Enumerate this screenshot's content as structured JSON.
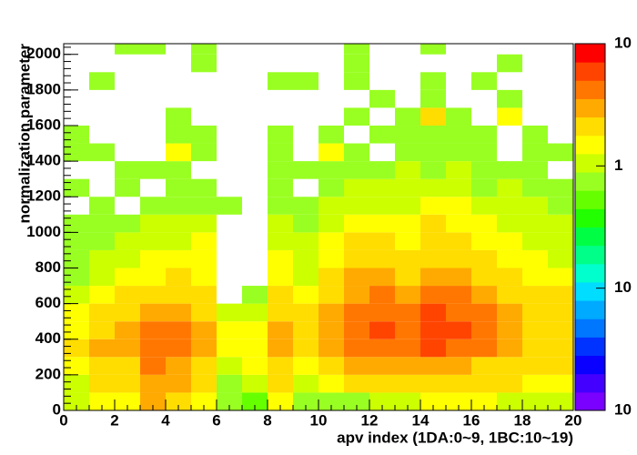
{
  "chart_data": {
    "type": "heatmap",
    "xlabel": "apv index (1DA:0~9, 1BC:10~19)",
    "ylabel": "normalization parameter",
    "xbins": [
      0,
      1,
      2,
      3,
      4,
      5,
      6,
      7,
      8,
      9,
      10,
      11,
      12,
      13,
      14,
      15,
      16,
      17,
      18,
      19,
      20
    ],
    "ybins": [
      0,
      100,
      200,
      300,
      400,
      500,
      600,
      700,
      800,
      900,
      1000,
      1100,
      1200,
      1300,
      1400,
      1500,
      1600,
      1700,
      1800,
      1900,
      2000,
      2060
    ],
    "xlim": [
      0,
      20
    ],
    "ylim": [
      0,
      2060
    ],
    "xticks": [
      0,
      2,
      4,
      6,
      8,
      10,
      12,
      14,
      16,
      18,
      20
    ],
    "yticks": [
      0,
      200,
      400,
      600,
      800,
      1000,
      1200,
      1400,
      1600,
      1800,
      2000
    ],
    "zlim": [
      0.01,
      10
    ],
    "zlog": true,
    "zticks": [
      {
        "value": 0.01,
        "label": "10"
      },
      {
        "value": 0.1,
        "label": "10"
      },
      1,
      10
    ],
    "palette": [
      "#7a00ff",
      "#4400ff",
      "#0a00ff",
      "#0033ff",
      "#0077ff",
      "#00aaff",
      "#00ddff",
      "#00ffcc",
      "#00ff88",
      "#00ff44",
      "#22ff00",
      "#66ff00",
      "#99ff22",
      "#ccff00",
      "#ffff00",
      "#ffdd00",
      "#ffaa00",
      "#ff7700",
      "#ff4400",
      "#ff0000"
    ],
    "z": [
      [
        1,
        1.5,
        1.5,
        3,
        2,
        1.5,
        0.8,
        0.5,
        1.5,
        0.8,
        0.8,
        0.8,
        1,
        1,
        1.5,
        1.5,
        1.5,
        1,
        1,
        1
      ],
      [
        1,
        2,
        2,
        3,
        3,
        2,
        0.8,
        1,
        2,
        1,
        1.5,
        2,
        2,
        2.5,
        2,
        2,
        2,
        2,
        1.5,
        1.5
      ],
      [
        1.5,
        2.5,
        2.5,
        4,
        3,
        2.5,
        1,
        1.5,
        2.5,
        1.5,
        2,
        3,
        3,
        3,
        3,
        3,
        2.5,
        2.5,
        2,
        2
      ],
      [
        2,
        3,
        3,
        5,
        4,
        3,
        1.5,
        1.5,
        3,
        2,
        3,
        4,
        5,
        5,
        6,
        5,
        4,
        3,
        2.5,
        2
      ],
      [
        1.5,
        2.5,
        3,
        4,
        4,
        3,
        1.5,
        1.5,
        3,
        2,
        3,
        5,
        6,
        5,
        7,
        6,
        4,
        3,
        2.5,
        2
      ],
      [
        1.5,
        2,
        2.5,
        3,
        3,
        2.5,
        1,
        1,
        2.5,
        2,
        3,
        4,
        5,
        4,
        6,
        5,
        4,
        3,
        2.5,
        2
      ],
      [
        1,
        1.5,
        2,
        2,
        2.5,
        2,
        null,
        0.8,
        2,
        1.5,
        2.5,
        3,
        4,
        3,
        4,
        4,
        3,
        2.5,
        2,
        2
      ],
      [
        0.8,
        1,
        1.5,
        1.5,
        2,
        1.5,
        null,
        null,
        1.5,
        1,
        2,
        3,
        3,
        2.5,
        3,
        3,
        2.5,
        2,
        1.5,
        1.5
      ],
      [
        0.8,
        1,
        1,
        1.5,
        1.5,
        1.5,
        null,
        null,
        1.5,
        1,
        1.5,
        2,
        2.5,
        2,
        2.5,
        2.5,
        2,
        1.5,
        1.5,
        1
      ],
      [
        0.8,
        0.8,
        1,
        1,
        1,
        1.5,
        null,
        null,
        1,
        1,
        1.5,
        2,
        2,
        1.5,
        2,
        2,
        1.5,
        1.5,
        1,
        1
      ],
      [
        0.8,
        0.8,
        0.8,
        1,
        1,
        1,
        null,
        null,
        1,
        0.8,
        1,
        1.5,
        1.5,
        1.5,
        2,
        1.5,
        1.5,
        1,
        1,
        1
      ],
      [
        null,
        0.8,
        null,
        0.8,
        0.8,
        0.8,
        0.8,
        null,
        0.8,
        0.8,
        1,
        1,
        1,
        1,
        1.5,
        1.5,
        1,
        1,
        1,
        0.8
      ],
      [
        0.8,
        null,
        0.8,
        null,
        0.8,
        0.8,
        null,
        null,
        0.8,
        null,
        0.8,
        1,
        1,
        1,
        1,
        1,
        0.8,
        1,
        0.8,
        0.8
      ],
      [
        null,
        null,
        0.8,
        0.8,
        0.8,
        null,
        null,
        null,
        0.8,
        0.8,
        0.8,
        0.8,
        0.8,
        1,
        0.8,
        1,
        0.8,
        0.8,
        0.8,
        null
      ],
      [
        0.8,
        0.8,
        null,
        null,
        1.5,
        0.8,
        null,
        null,
        0.8,
        null,
        1.5,
        0.8,
        null,
        0.8,
        0.8,
        0.8,
        0.8,
        null,
        0.8,
        0.8
      ],
      [
        0.8,
        null,
        null,
        null,
        0.8,
        0.8,
        null,
        null,
        0.8,
        null,
        0.8,
        null,
        0.8,
        0.8,
        0.8,
        0.8,
        0.8,
        null,
        0.8,
        null
      ],
      [
        null,
        null,
        null,
        null,
        0.8,
        null,
        null,
        null,
        null,
        null,
        null,
        0.8,
        null,
        0.8,
        2,
        0.8,
        null,
        1.5,
        null,
        null
      ],
      [
        null,
        null,
        null,
        null,
        null,
        null,
        null,
        null,
        null,
        null,
        null,
        null,
        0.8,
        null,
        0.8,
        null,
        null,
        0.8,
        null,
        null
      ],
      [
        null,
        0.8,
        null,
        null,
        null,
        null,
        null,
        null,
        0.8,
        0.8,
        null,
        0.8,
        null,
        null,
        0.8,
        null,
        0.8,
        null,
        null,
        null
      ],
      [
        null,
        null,
        null,
        null,
        null,
        0.8,
        null,
        null,
        null,
        null,
        null,
        0.8,
        null,
        null,
        null,
        null,
        null,
        0.8,
        null,
        null
      ],
      [
        null,
        null,
        0.8,
        0.8,
        null,
        0.8,
        null,
        null,
        null,
        null,
        null,
        0.8,
        null,
        null,
        0.8,
        null,
        null,
        null,
        null,
        null
      ]
    ]
  }
}
